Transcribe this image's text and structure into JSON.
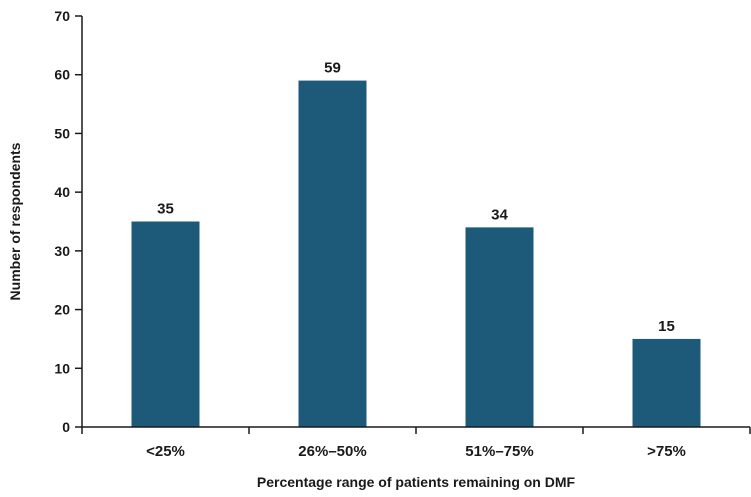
{
  "chart_data": {
    "type": "bar",
    "categories": [
      "<25%",
      "26%–50%",
      "51%–75%",
      ">75%"
    ],
    "values": [
      35,
      59,
      34,
      15
    ],
    "data_labels": [
      "35",
      "59",
      "34",
      "15"
    ],
    "title": "",
    "xlabel": "Percentage range of patients remaining on DMF",
    "ylabel": "Number of respondents",
    "ylim": [
      0,
      70
    ],
    "yticks": [
      0,
      10,
      20,
      30,
      40,
      50,
      60,
      70
    ],
    "ytick_labels": [
      "0",
      "10",
      "20",
      "30",
      "40",
      "50",
      "60",
      "70"
    ],
    "grid": false,
    "legend": "none",
    "bar_color": "#1d5a7a"
  }
}
